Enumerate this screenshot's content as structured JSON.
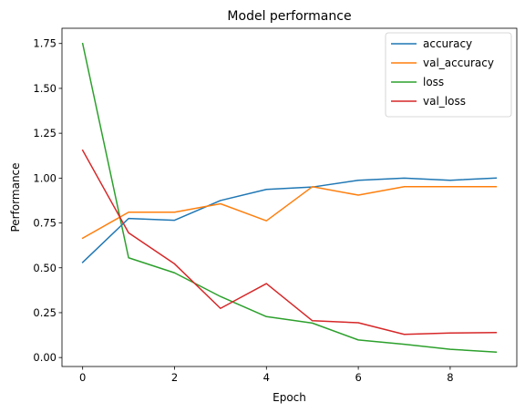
{
  "chart_data": {
    "type": "line",
    "title": "Model performance",
    "xlabel": "Epoch",
    "ylabel": "Performance",
    "xlim": [
      -0.45,
      9.45
    ],
    "ylim": [
      -0.05,
      1.835
    ],
    "x": [
      0,
      1,
      2,
      3,
      4,
      5,
      6,
      7,
      8,
      9
    ],
    "xticks": [
      0,
      2,
      4,
      6,
      8
    ],
    "xtick_labels": [
      "0",
      "2",
      "4",
      "6",
      "8"
    ],
    "yticks": [
      0.0,
      0.25,
      0.5,
      0.75,
      1.0,
      1.25,
      1.5,
      1.75
    ],
    "ytick_labels": [
      "0.00",
      "0.25",
      "0.50",
      "0.75",
      "1.00",
      "1.25",
      "1.50",
      "1.75"
    ],
    "grid": false,
    "legend_position": "top-right",
    "series": [
      {
        "name": "accuracy",
        "color": "#1f77b4",
        "values": [
          0.53,
          0.775,
          0.765,
          0.875,
          0.937,
          0.95,
          0.988,
          1.0,
          0.988,
          1.0
        ]
      },
      {
        "name": "val_accuracy",
        "color": "#ff7f0e",
        "values": [
          0.665,
          0.81,
          0.81,
          0.857,
          0.762,
          0.952,
          0.905,
          0.952,
          0.952,
          0.952
        ]
      },
      {
        "name": "loss",
        "color": "#2ca02c",
        "values": [
          1.75,
          0.556,
          0.472,
          0.34,
          0.228,
          0.192,
          0.098,
          0.074,
          0.046,
          0.03
        ]
      },
      {
        "name": "val_loss",
        "color": "#d62728",
        "values": [
          1.155,
          0.695,
          0.522,
          0.274,
          0.412,
          0.205,
          0.194,
          0.129,
          0.137,
          0.139
        ]
      }
    ]
  }
}
